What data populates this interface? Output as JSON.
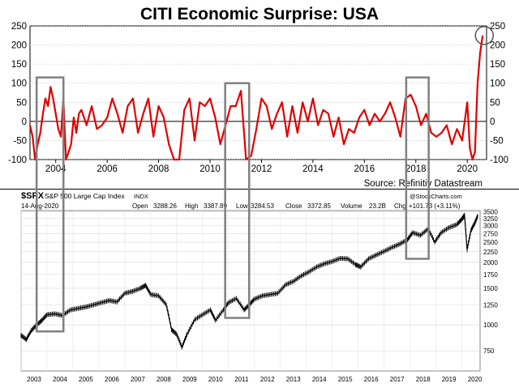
{
  "chart_data": [
    {
      "type": "line",
      "title": "CITI Economic Surprise: USA",
      "source": "Source: Refinitiv Datastream",
      "ylim": [
        -100,
        250
      ],
      "y_ticks": [
        -100,
        -50,
        0,
        50,
        100,
        150,
        200,
        250
      ],
      "x_ticks": [
        "2004",
        "2006",
        "2008",
        "2010",
        "2012",
        "2014",
        "2016",
        "2018",
        "2020"
      ],
      "xlim": [
        2003.0,
        2020.75
      ],
      "grid": true,
      "colors": {
        "line": "#e00000",
        "zero_line": "#000000",
        "highlight_box": "#808080",
        "circle": "#555555"
      },
      "series": [
        {
          "x": [
            2003.0,
            2003.1,
            2003.2,
            2003.3,
            2003.4,
            2003.5,
            2003.6,
            2003.7,
            2003.8,
            2003.9,
            2004.0,
            2004.1,
            2004.2,
            2004.3,
            2004.4,
            2004.5,
            2004.6,
            2004.7,
            2004.8,
            2004.9,
            2005.0,
            2005.2,
            2005.4,
            2005.6,
            2005.8,
            2006.0,
            2006.2,
            2006.4,
            2006.6,
            2006.8,
            2007.0,
            2007.2,
            2007.4,
            2007.6,
            2007.8,
            2008.0,
            2008.2,
            2008.4,
            2008.6,
            2008.8,
            2009.0,
            2009.2,
            2009.4,
            2009.6,
            2009.8,
            2010.0,
            2010.2,
            2010.4,
            2010.6,
            2010.8,
            2011.0,
            2011.2,
            2011.4,
            2011.6,
            2011.8,
            2012.0,
            2012.2,
            2012.4,
            2012.6,
            2012.8,
            2013.0,
            2013.2,
            2013.4,
            2013.6,
            2013.8,
            2014.0,
            2014.2,
            2014.4,
            2014.6,
            2014.8,
            2015.0,
            2015.2,
            2015.4,
            2015.6,
            2015.8,
            2016.0,
            2016.2,
            2016.4,
            2016.6,
            2016.8,
            2017.0,
            2017.2,
            2017.4,
            2017.6,
            2017.8,
            2018.0,
            2018.2,
            2018.4,
            2018.6,
            2018.8,
            2019.0,
            2019.2,
            2019.4,
            2019.6,
            2019.8,
            2020.0,
            2020.1,
            2020.2,
            2020.3,
            2020.4,
            2020.5,
            2020.6
          ],
          "values": [
            -10,
            -40,
            -100,
            -60,
            -30,
            20,
            60,
            40,
            90,
            60,
            20,
            -20,
            -40,
            60,
            -100,
            -80,
            -60,
            10,
            -30,
            20,
            30,
            -10,
            40,
            -20,
            -10,
            10,
            60,
            20,
            -30,
            40,
            60,
            -30,
            20,
            60,
            -40,
            40,
            10,
            -60,
            -100,
            -100,
            30,
            60,
            -50,
            50,
            40,
            60,
            10,
            -60,
            -10,
            40,
            40,
            80,
            -100,
            -90,
            -20,
            60,
            40,
            -20,
            20,
            50,
            -40,
            40,
            -30,
            50,
            0,
            60,
            -10,
            30,
            20,
            -40,
            10,
            -60,
            -20,
            -30,
            10,
            30,
            -10,
            20,
            0,
            20,
            50,
            10,
            -40,
            60,
            70,
            40,
            -10,
            20,
            -30,
            -40,
            -30,
            -10,
            -60,
            -20,
            -50,
            50,
            -70,
            -100,
            -80,
            100,
            180,
            225
          ]
        }
      ]
    },
    {
      "type": "line",
      "title": "$SPX S&P 500 Large Cap Index  INDX",
      "symbol": "$SPX",
      "name": "S&P 500 Large Cap Index",
      "exchange": "INDX",
      "date": "14-Aug-2020",
      "watermark": "@StockCharts.com",
      "ohlc": {
        "open_label": "Open",
        "open": "3288.26",
        "high_label": "High",
        "high": "3387.89",
        "low_label": "Low",
        "low": "3284.53",
        "close_label": "Close",
        "close": "3372.85",
        "volume_label": "Volume",
        "volume": "23.2B",
        "chg_label": "Chg",
        "chg": "+101.73 (+3.11%)"
      },
      "y_scale": "log",
      "ylim": [
        600,
        3550
      ],
      "y_ticks": [
        750,
        1000,
        1250,
        1500,
        1750,
        2000,
        2250,
        2500,
        2750,
        3000,
        3250,
        3500
      ],
      "x_ticks": [
        "2003",
        "2004",
        "2005",
        "2006",
        "2007",
        "2008",
        "2009",
        "2010",
        "2011",
        "2012",
        "2013",
        "2014",
        "2015",
        "2016",
        "2017",
        "2018",
        "2019",
        "2020"
      ],
      "xlim": [
        2003.0,
        2020.7
      ],
      "colors": {
        "line": "#000000",
        "highlight_box": "#808080"
      },
      "series": [
        {
          "x": [
            2003.0,
            2003.2,
            2003.4,
            2003.6,
            2003.8,
            2004.0,
            2004.3,
            2004.6,
            2004.9,
            2005.2,
            2005.5,
            2005.8,
            2006.1,
            2006.4,
            2006.7,
            2007.0,
            2007.3,
            2007.6,
            2007.8,
            2008.0,
            2008.3,
            2008.6,
            2008.8,
            2009.0,
            2009.2,
            2009.4,
            2009.7,
            2010.0,
            2010.3,
            2010.5,
            2010.8,
            2011.0,
            2011.3,
            2011.6,
            2011.8,
            2012.0,
            2012.3,
            2012.6,
            2012.9,
            2013.2,
            2013.5,
            2013.8,
            2014.1,
            2014.4,
            2014.7,
            2015.0,
            2015.3,
            2015.6,
            2015.9,
            2016.1,
            2016.4,
            2016.7,
            2017.0,
            2017.3,
            2017.6,
            2017.9,
            2018.1,
            2018.4,
            2018.7,
            2018.95,
            2019.2,
            2019.5,
            2019.8,
            2020.0,
            2020.1,
            2020.2,
            2020.35,
            2020.5,
            2020.62
          ],
          "values": [
            890,
            850,
            940,
            1000,
            1050,
            1120,
            1130,
            1110,
            1180,
            1200,
            1220,
            1250,
            1280,
            1310,
            1290,
            1420,
            1450,
            1500,
            1550,
            1400,
            1380,
            1250,
            950,
            900,
            780,
            900,
            1060,
            1120,
            1180,
            1050,
            1180,
            1280,
            1340,
            1180,
            1250,
            1330,
            1380,
            1400,
            1420,
            1560,
            1620,
            1720,
            1800,
            1900,
            1970,
            2020,
            2090,
            2080,
            1950,
            1900,
            2080,
            2170,
            2260,
            2360,
            2450,
            2570,
            2780,
            2700,
            2900,
            2500,
            2780,
            2940,
            3040,
            3230,
            3370,
            2300,
            2850,
            3100,
            3372
          ]
        }
      ]
    }
  ]
}
